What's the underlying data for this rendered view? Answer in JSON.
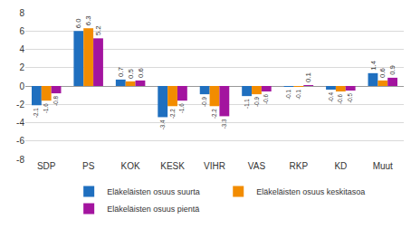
{
  "chart_data": {
    "type": "bar",
    "categories": [
      "SDP",
      "PS",
      "KOK",
      "KESK",
      "VIHR",
      "VAS",
      "RKP",
      "KD",
      "Muut"
    ],
    "series": [
      {
        "name": "Eläkeläisten osuus suurta",
        "color": "#1f6fbf",
        "values": [
          -2.1,
          6.0,
          0.7,
          -3.4,
          -0.9,
          -1.1,
          -0.1,
          -0.4,
          1.4
        ],
        "value_labels": [
          "-2.1",
          "6.0",
          "0.7",
          "-3.4",
          "-0.9",
          "-1.1",
          "-0.1",
          "-0.4",
          "1.4"
        ]
      },
      {
        "name": "Eläkeläisten osuus keskitasoa",
        "color": "#f28c00",
        "values": [
          -1.6,
          6.3,
          0.5,
          -2.2,
          -2.2,
          -0.9,
          -0.1,
          -0.6,
          0.6
        ],
        "value_labels": [
          "-1.6",
          "6.3",
          "0.5",
          "-2.2",
          "-2.2",
          "-0.9",
          "-0.1",
          "-0.6",
          "0.6"
        ]
      },
      {
        "name": "Eläkeläisten osuus pientä",
        "color": "#a3149f",
        "values": [
          -0.8,
          5.2,
          0.6,
          -1.6,
          -3.3,
          -0.6,
          0.1,
          -0.5,
          0.9
        ],
        "value_labels": [
          "-0.8",
          "5.2",
          "0.6",
          "-1.6",
          "-3.3",
          "-0.6",
          "0.1",
          "-0.5",
          "0.9"
        ]
      }
    ],
    "ylim": [
      -8,
      8
    ],
    "yticks": [
      -8,
      -6,
      -4,
      -2,
      0,
      2,
      4,
      6,
      8
    ],
    "grid": true,
    "legend": "bottom",
    "data_labels": true
  }
}
